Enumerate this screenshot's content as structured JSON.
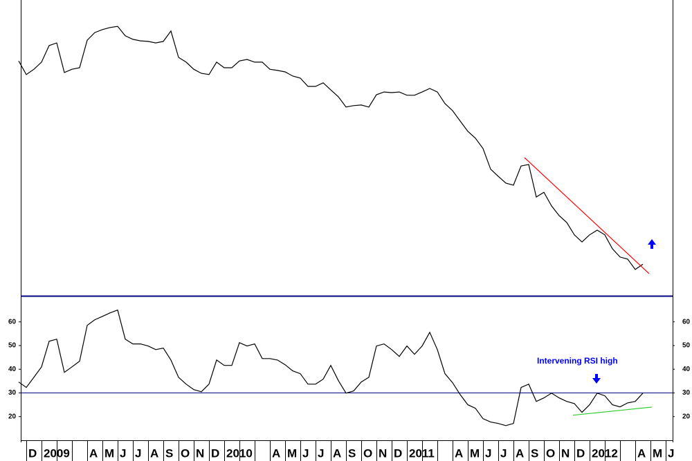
{
  "chart_data": {
    "type": "line",
    "categories": [
      null,
      "D",
      null,
      "2009",
      null,
      null,
      null,
      null,
      null,
      "A",
      null,
      "M",
      null,
      "J",
      null,
      "J",
      null,
      "A",
      null,
      "S",
      null,
      "O",
      null,
      "N",
      null,
      "D",
      null,
      "2010",
      null,
      null,
      null,
      null,
      null,
      "A",
      null,
      "M",
      null,
      "J",
      null,
      "J",
      null,
      "A",
      null,
      "S",
      null,
      "O",
      null,
      "N",
      null,
      "D",
      null,
      "2011",
      null,
      null,
      null,
      null,
      null,
      "A",
      null,
      "M",
      null,
      "J",
      null,
      "J",
      null,
      "A",
      null,
      "S",
      null,
      "O",
      null,
      "N",
      null,
      "D",
      null,
      "2012",
      null,
      null,
      null,
      null,
      null,
      "A",
      null,
      "M",
      null,
      "J"
    ],
    "panels": [
      {
        "ylim": [
          0,
          100
        ],
        "series": [
          {
            "color": "#000000",
            "values": [
              79.4,
              74.8,
              76.6,
              79.0,
              84.6,
              85.5,
              75.5,
              76.6,
              77.1,
              86.4,
              89.0,
              90.0,
              90.7,
              91.1,
              87.9,
              86.7,
              86.2,
              86.0,
              85.5,
              86.0,
              89.5,
              80.6,
              79.0,
              76.6,
              75.2,
              74.8,
              79.0,
              77.1,
              77.1,
              79.4,
              79.9,
              79.0,
              79.0,
              76.6,
              76.2,
              75.7,
              74.3,
              73.6,
              70.8,
              70.8,
              72.0,
              69.6,
              67.3,
              63.8,
              64.3,
              64.5,
              63.8,
              68.0,
              68.9,
              68.7,
              68.9,
              67.8,
              67.8,
              68.9,
              70.1,
              68.9,
              65.0,
              62.6,
              59.1,
              55.6,
              53.3,
              49.8,
              42.8,
              40.4,
              38.1,
              37.4,
              43.9,
              44.4,
              33.4,
              35.0,
              30.4,
              27.1,
              24.8,
              20.6,
              18.2,
              20.6,
              22.2,
              20.6,
              15.9,
              13.1,
              12.4,
              8.9,
              10.7,
              null,
              null,
              null
            ]
          }
        ],
        "trendline": {
          "values": [
            46.7,
            7.5
          ],
          "color": "#ff0000"
        }
      },
      {
        "ylim": [
          10,
          71
        ],
        "yticks": [
          20,
          30,
          40,
          50,
          60
        ],
        "series": [
          {
            "color": "#000000",
            "values": [
              34.6,
              32.3,
              36.6,
              41.0,
              51.8,
              52.7,
              38.7,
              41.0,
              43.4,
              58.5,
              60.9,
              62.3,
              63.8,
              65.0,
              52.7,
              50.7,
              50.7,
              49.8,
              48.3,
              48.9,
              43.9,
              36.6,
              33.7,
              31.4,
              30.5,
              33.7,
              43.9,
              41.6,
              41.6,
              51.2,
              49.8,
              50.7,
              44.5,
              44.5,
              43.9,
              41.9,
              39.3,
              38.1,
              33.7,
              33.7,
              35.8,
              41.6,
              35.2,
              29.9,
              30.8,
              34.6,
              36.6,
              49.8,
              50.7,
              48.3,
              45.4,
              49.8,
              46.3,
              49.8,
              55.6,
              48.3,
              38.1,
              34.3,
              29.3,
              25.0,
              23.5,
              19.1,
              17.7,
              17.1,
              16.2,
              17.1,
              32.3,
              33.7,
              26.4,
              27.9,
              29.9,
              27.9,
              26.4,
              25.5,
              21.8,
              25.0,
              29.9,
              28.8,
              25.0,
              24.1,
              25.8,
              26.4,
              29.9,
              null,
              null,
              null
            ]
          }
        ],
        "reference_line": {
          "value": 30,
          "color": "#000080"
        },
        "trendline": {
          "values": [
            20.6,
            24.0
          ],
          "color": "#33cc33"
        },
        "annotation": {
          "text": "Intervening RSI high",
          "color": "#0000ff"
        }
      }
    ]
  }
}
